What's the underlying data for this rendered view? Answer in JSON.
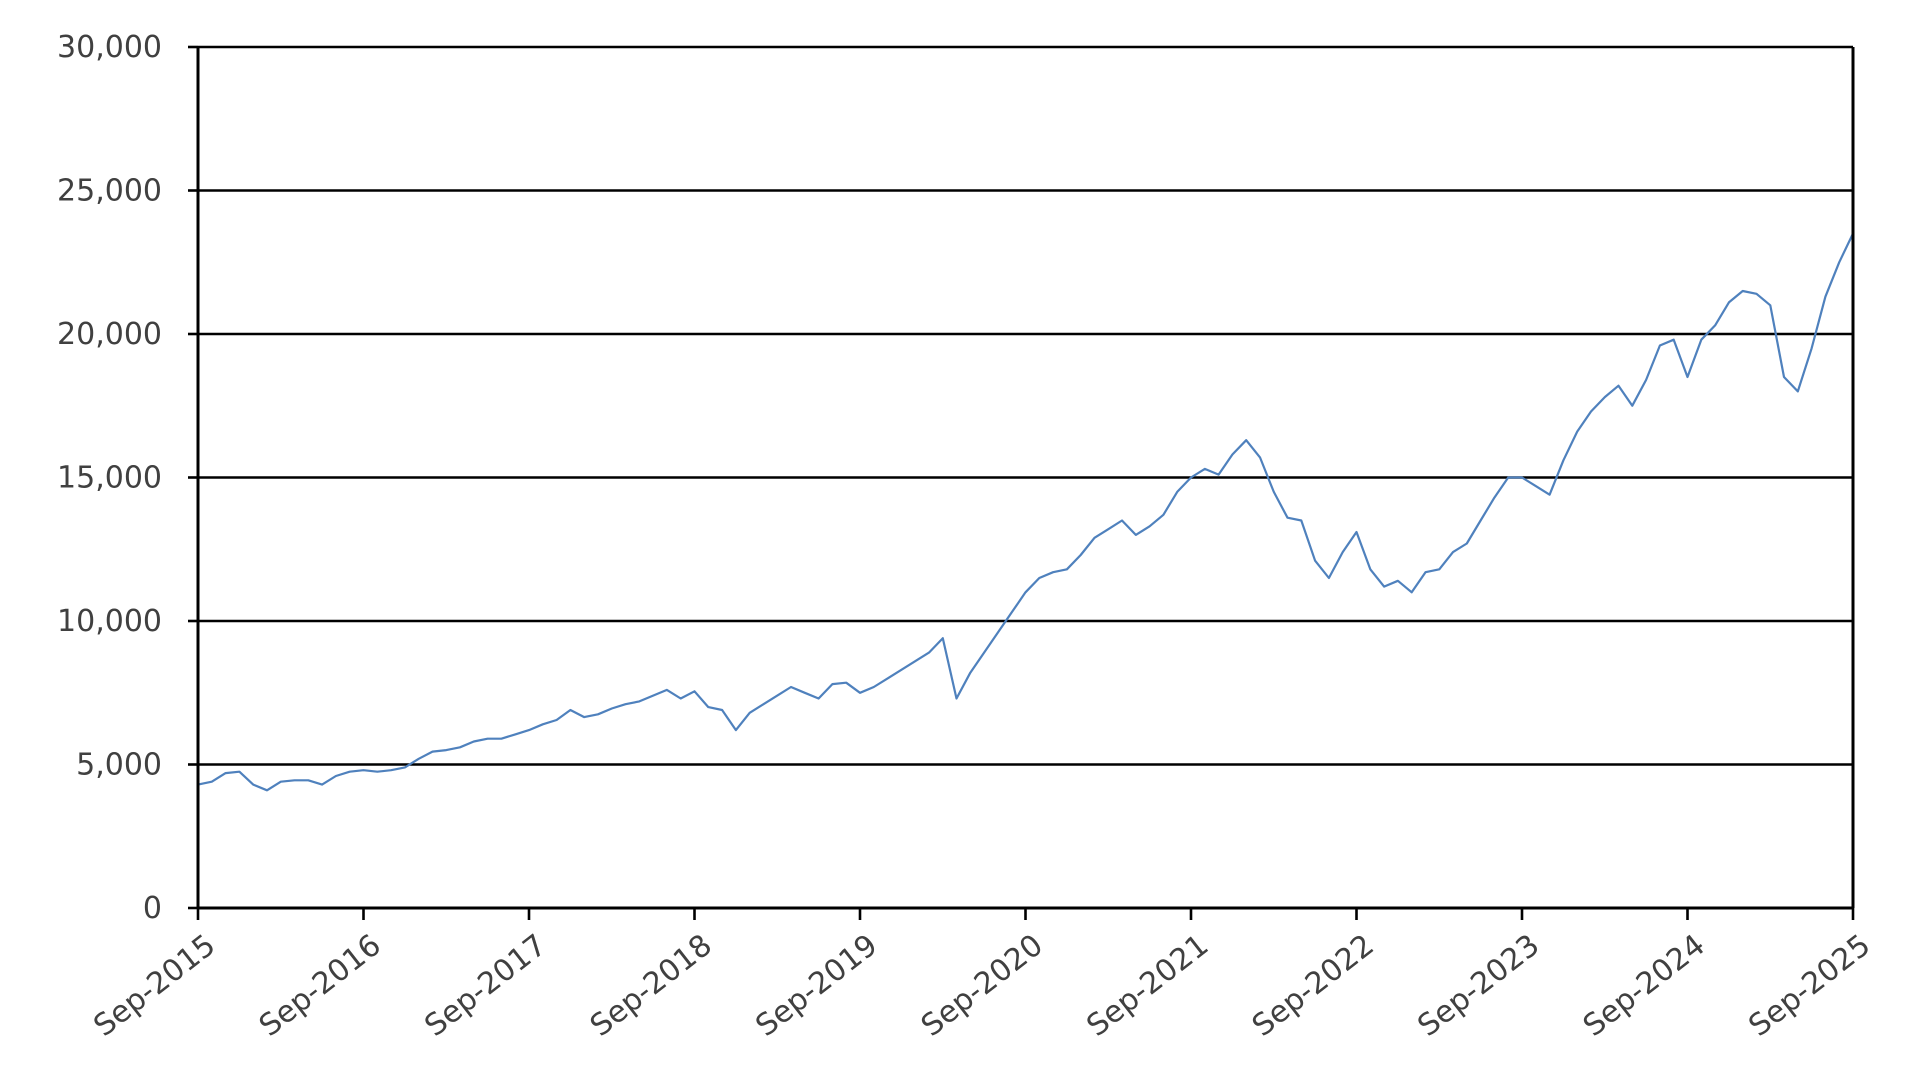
{
  "chart_data": {
    "type": "line",
    "title": "",
    "xlabel": "",
    "ylabel": "",
    "ylim": [
      0,
      30000
    ],
    "y_ticks": [
      0,
      5000,
      10000,
      15000,
      20000,
      25000,
      30000
    ],
    "y_tick_labels": [
      "0",
      "5,000",
      "10,000",
      "15,000",
      "20,000",
      "25,000",
      "30,000"
    ],
    "x_range": [
      "2015-09",
      "2025-09"
    ],
    "x_tick_labels": [
      "Sep-2015",
      "Sep-2016",
      "Sep-2017",
      "Sep-2018",
      "Sep-2019",
      "Sep-2020",
      "Sep-2021",
      "Sep-2022",
      "Sep-2023",
      "Sep-2024",
      "Sep-2025"
    ],
    "grid": "horizontal",
    "legend": "none",
    "line_color": "#4f81bd",
    "series": [
      {
        "name": "",
        "x": [
          "2015-09",
          "2015-10",
          "2015-11",
          "2015-12",
          "2016-01",
          "2016-02",
          "2016-03",
          "2016-04",
          "2016-05",
          "2016-06",
          "2016-07",
          "2016-08",
          "2016-09",
          "2016-10",
          "2016-11",
          "2016-12",
          "2017-01",
          "2017-02",
          "2017-03",
          "2017-04",
          "2017-05",
          "2017-06",
          "2017-07",
          "2017-08",
          "2017-09",
          "2017-10",
          "2017-11",
          "2017-12",
          "2018-01",
          "2018-02",
          "2018-03",
          "2018-04",
          "2018-05",
          "2018-06",
          "2018-07",
          "2018-08",
          "2018-09",
          "2018-10",
          "2018-11",
          "2018-12",
          "2019-01",
          "2019-02",
          "2019-03",
          "2019-04",
          "2019-05",
          "2019-06",
          "2019-07",
          "2019-08",
          "2019-09",
          "2019-10",
          "2019-11",
          "2019-12",
          "2020-01",
          "2020-02",
          "2020-03",
          "2020-04",
          "2020-05",
          "2020-06",
          "2020-07",
          "2020-08",
          "2020-09",
          "2020-10",
          "2020-11",
          "2020-12",
          "2021-01",
          "2021-02",
          "2021-03",
          "2021-04",
          "2021-05",
          "2021-06",
          "2021-07",
          "2021-08",
          "2021-09",
          "2021-10",
          "2021-11",
          "2021-12",
          "2022-01",
          "2022-02",
          "2022-03",
          "2022-04",
          "2022-05",
          "2022-06",
          "2022-07",
          "2022-08",
          "2022-09",
          "2022-10",
          "2022-11",
          "2022-12",
          "2023-01",
          "2023-02",
          "2023-03",
          "2023-04",
          "2023-05",
          "2023-06",
          "2023-07",
          "2023-08",
          "2023-09",
          "2023-10",
          "2023-11",
          "2023-12",
          "2024-01",
          "2024-02",
          "2024-03",
          "2024-04",
          "2024-05",
          "2024-06",
          "2024-07",
          "2024-08",
          "2024-09",
          "2024-10",
          "2024-11",
          "2024-12",
          "2025-01",
          "2025-02",
          "2025-03",
          "2025-04",
          "2025-05",
          "2025-06",
          "2025-07",
          "2025-08",
          "2025-09"
        ],
        "values": [
          4300,
          4400,
          4700,
          4750,
          4300,
          4100,
          4400,
          4450,
          4450,
          4300,
          4600,
          4750,
          4800,
          4750,
          4800,
          4900,
          5200,
          5450,
          5500,
          5600,
          5800,
          5900,
          5900,
          6050,
          6200,
          6400,
          6550,
          6900,
          6650,
          6750,
          6950,
          7100,
          7200,
          7400,
          7600,
          7300,
          7550,
          7000,
          6900,
          6200,
          6800,
          7100,
          7400,
          7700,
          7500,
          7300,
          7800,
          7850,
          7500,
          7700,
          8000,
          8300,
          8600,
          8900,
          9400,
          7300,
          8200,
          8900,
          9600,
          10300,
          11000,
          11500,
          11700,
          11800,
          12300,
          12900,
          13200,
          13500,
          13000,
          13300,
          13700,
          14500,
          15000,
          15300,
          15100,
          15800,
          16300,
          15700,
          14500,
          13600,
          13500,
          12100,
          11500,
          12400,
          13100,
          11800,
          11200,
          11400,
          11000,
          11700,
          11800,
          12400,
          12700,
          13500,
          14300,
          15000,
          15000,
          14700,
          14400,
          15600,
          16600,
          17300,
          17800,
          18200,
          17500,
          18400,
          19600,
          19800,
          18500,
          19800,
          20300,
          21100,
          21500,
          21400,
          21000,
          18500,
          18000,
          19500,
          21300,
          22500,
          23500
        ]
      }
    ]
  }
}
